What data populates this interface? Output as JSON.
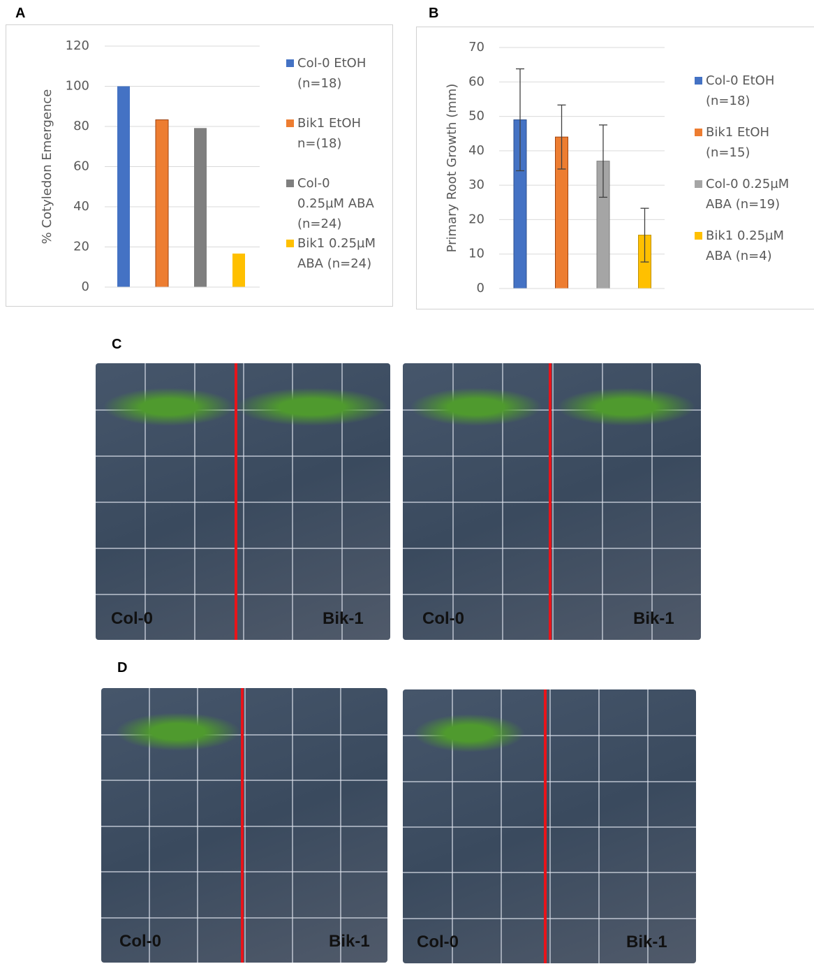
{
  "panel_labels": [
    "A",
    "B",
    "C",
    "D"
  ],
  "chart_data": [
    {
      "type": "bar",
      "y_label": "% Cotyledon Emergence",
      "ylim": [
        0,
        120
      ],
      "yticks": [
        0,
        20,
        40,
        60,
        80,
        100,
        120
      ],
      "grid": true,
      "series": [
        {
          "name": "Col-0 EtOH (n=18)",
          "color": "#4472c4",
          "values": [
            100
          ]
        },
        {
          "name": "Bik1 EtOH n=(18)",
          "color": "#ed7d31",
          "values": [
            83.3
          ]
        },
        {
          "name": "Col-0 0.25µM ABA (n=24)",
          "color": "#7f7f7f",
          "values": [
            79.2
          ]
        },
        {
          "name": "Bik1 0.25µM ABA (n=24)",
          "color": "#ffc000",
          "values": [
            16.7
          ]
        }
      ]
    },
    {
      "type": "bar",
      "y_label": "Primary Root Growth (mm)",
      "ylim": [
        0,
        70
      ],
      "yticks": [
        0,
        10,
        20,
        30,
        40,
        50,
        60,
        70
      ],
      "grid": true,
      "series": [
        {
          "name": "Col-0 EtOH (n=18)",
          "color": "#4472c4",
          "values": [
            49
          ],
          "errors": [
            14.8
          ]
        },
        {
          "name": "Bik1 EtOH (n=15)",
          "color": "#ed7d31",
          "values": [
            44
          ],
          "errors": [
            9.3
          ]
        },
        {
          "name": "Col-0 0.25µM ABA (n=19)",
          "color": "#a5a5a5",
          "values": [
            37
          ],
          "errors": [
            10.5
          ]
        },
        {
          "name": "Bik1 0.25µM ABA (n=4)",
          "color": "#ffc000",
          "values": [
            15.5
          ],
          "errors": [
            7.8
          ]
        }
      ]
    }
  ],
  "photos": [
    {
      "labels": [
        "Col-0",
        "Bik-1"
      ]
    },
    {
      "labels": [
        "Col-0",
        "Bik-1"
      ]
    },
    {
      "labels": [
        "Col-0",
        "Bik-1"
      ]
    },
    {
      "labels": [
        "Col-0",
        "Bik-1"
      ]
    }
  ]
}
